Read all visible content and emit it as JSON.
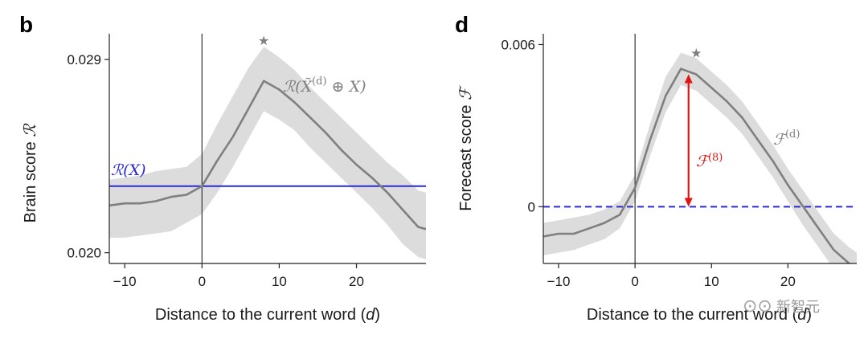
{
  "chart_data": [
    {
      "type": "line",
      "panel": "b",
      "xlabel": "Distance to the current word (d)",
      "ylabel": "Brain score ℛ",
      "xlim": [
        -12,
        29
      ],
      "ylim": [
        0.0195,
        0.0302
      ],
      "xticks": [
        -10,
        0,
        10,
        20
      ],
      "xtick_labels": [
        "−10",
        "0",
        "10",
        "20"
      ],
      "yticks": [
        0.02,
        0.029
      ],
      "ytick_labels": [
        "0.020",
        "0.029"
      ],
      "vline_x": 0,
      "baseline": {
        "label": "ℛ(X)",
        "y": 0.0231,
        "color": "#2a2ad0",
        "style": "solid"
      },
      "series": [
        {
          "name": "ℛ(X̃(d) ⊕ X)",
          "color": "#7f7f7f",
          "band_color": "#dcdcdc",
          "x": [
            -12,
            -10,
            -8,
            -6,
            -4,
            -2,
            0,
            2,
            4,
            6,
            8,
            10,
            12,
            14,
            16,
            18,
            20,
            22,
            24,
            26,
            28,
            29
          ],
          "y": [
            0.0222,
            0.0223,
            0.0223,
            0.0224,
            0.0226,
            0.0227,
            0.0231,
            0.0243,
            0.0254,
            0.0267,
            0.028,
            0.0276,
            0.027,
            0.0263,
            0.0256,
            0.0248,
            0.0241,
            0.0235,
            0.0228,
            0.022,
            0.0212,
            0.0211
          ],
          "lower": [
            0.0207,
            0.0207,
            0.0208,
            0.0209,
            0.021,
            0.0214,
            0.0218,
            0.0228,
            0.024,
            0.0253,
            0.0266,
            0.0262,
            0.0257,
            0.0249,
            0.0242,
            0.0235,
            0.0228,
            0.0221,
            0.0213,
            0.0204,
            0.0198,
            0.0197
          ],
          "upper": [
            0.0234,
            0.0235,
            0.0236,
            0.0238,
            0.0239,
            0.024,
            0.0246,
            0.026,
            0.0273,
            0.0286,
            0.0296,
            0.0291,
            0.0285,
            0.0277,
            0.027,
            0.0263,
            0.0256,
            0.0249,
            0.0242,
            0.0236,
            0.0229,
            0.0228
          ]
        }
      ],
      "significance_marker": {
        "x": 8,
        "y": 0.0299,
        "symbol": "★"
      },
      "annotation": "ℛ(X̃(d) ⊕ X)"
    },
    {
      "type": "line",
      "panel": "d",
      "xlabel": "Distance to the current word (d)",
      "ylabel": "Forecast score ℱ",
      "xlim": [
        -12,
        29
      ],
      "ylim": [
        -0.0021,
        0.0064
      ],
      "xticks": [
        -10,
        0,
        10,
        20
      ],
      "xtick_labels": [
        "−10",
        "0",
        "10",
        "20"
      ],
      "yticks": [
        0,
        0.006
      ],
      "ytick_labels": [
        "0",
        "0.006"
      ],
      "vline_x": 0,
      "baseline": {
        "y": 0,
        "color": "#2a2ad0",
        "style": "dashed"
      },
      "series": [
        {
          "name": "ℱ(d)",
          "color": "#7f7f7f",
          "band_color": "#dcdcdc",
          "x": [
            -12,
            -10,
            -8,
            -6,
            -4,
            -2,
            0,
            2,
            4,
            6,
            8,
            10,
            12,
            14,
            16,
            18,
            20,
            22,
            24,
            26,
            28,
            29
          ],
          "y": [
            -0.0011,
            -0.001,
            -0.001,
            -0.0008,
            -0.0006,
            -0.0003,
            0.0007,
            0.0025,
            0.0041,
            0.0051,
            0.0049,
            0.0044,
            0.0039,
            0.0033,
            0.0025,
            0.0017,
            0.0008,
            0.0,
            -0.0008,
            -0.0016,
            -0.0021,
            -0.0023
          ],
          "lower": [
            -0.0018,
            -0.0017,
            -0.0016,
            -0.0014,
            -0.0012,
            -0.0008,
            0.0002,
            0.0019,
            0.0035,
            0.0045,
            0.0043,
            0.0038,
            0.0033,
            0.0027,
            0.0019,
            0.0011,
            0.0002,
            -0.0007,
            -0.0015,
            -0.0023,
            -0.0028,
            -0.003
          ],
          "upper": [
            -0.0006,
            -0.0005,
            -0.0004,
            -0.0003,
            -0.0001,
            0.0002,
            0.0012,
            0.0031,
            0.0048,
            0.0057,
            0.0055,
            0.005,
            0.0045,
            0.0039,
            0.0031,
            0.0023,
            0.0014,
            0.0006,
            -0.0002,
            -0.001,
            -0.0015,
            -0.0017
          ]
        }
      ],
      "significance_marker": {
        "x": 8,
        "y": 0.0057,
        "symbol": "★"
      },
      "arrow": {
        "x": 7,
        "from": 0,
        "to": 0.0049,
        "color": "#e01515",
        "label": "ℱ(8)"
      },
      "annotation": "ℱ(d)"
    }
  ],
  "watermark": "新智元"
}
